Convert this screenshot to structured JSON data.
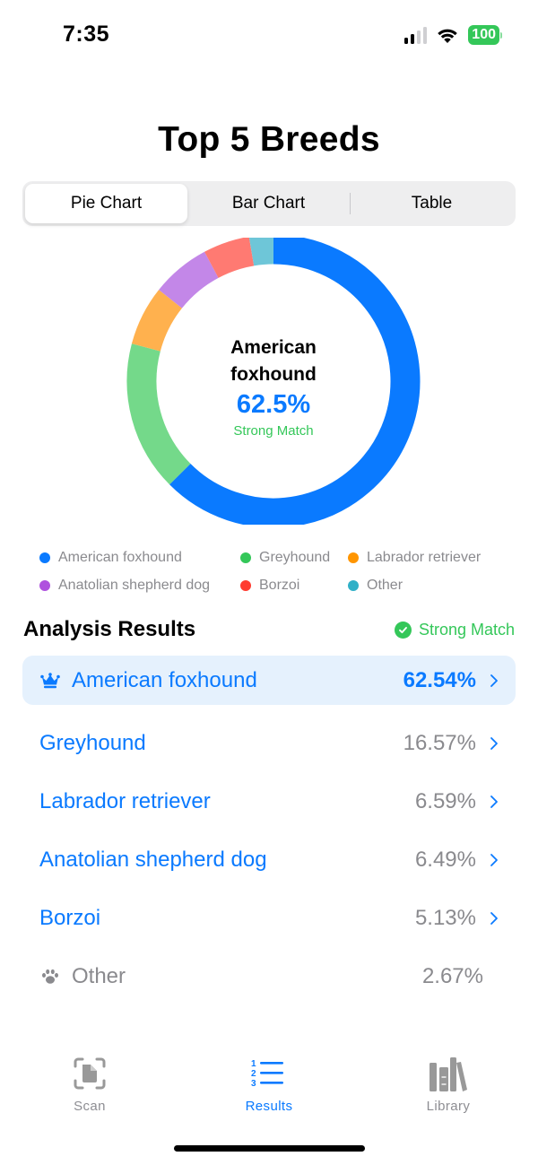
{
  "status_bar": {
    "time": "7:35",
    "battery": "100",
    "icons": [
      "cellular-signal-icon",
      "wifi-icon",
      "battery-icon"
    ]
  },
  "page": {
    "title": "Top 5 Breeds"
  },
  "segmented_control": {
    "options": [
      {
        "label": "Pie Chart",
        "selected": true
      },
      {
        "label": "Bar Chart",
        "selected": false
      },
      {
        "label": "Table",
        "selected": false
      }
    ]
  },
  "donut": {
    "center_name": "American foxhound",
    "center_percent": "62.5%",
    "center_label": "Strong Match"
  },
  "chart_data": {
    "type": "pie",
    "style": "donut",
    "title": "Top 5 Breeds",
    "categories": [
      "American foxhound",
      "Greyhound",
      "Labrador retriever",
      "Anatolian shepherd dog",
      "Borzoi",
      "Other"
    ],
    "values": [
      62.54,
      16.57,
      6.59,
      6.49,
      5.13,
      2.67
    ],
    "colors": [
      "#0a7aff",
      "#74d98a",
      "#ffb14e",
      "#c387e8",
      "#ff7a72",
      "#6ec6d8"
    ],
    "legend_colors": [
      "#0a7aff",
      "#34c759",
      "#ff9500",
      "#af52de",
      "#ff3b30",
      "#30b0c7"
    ],
    "center_text": "American foxhound 62.5% Strong Match",
    "legend_position": "bottom"
  },
  "legend": {
    "items": [
      {
        "label": "American foxhound",
        "color": "#0a7aff"
      },
      {
        "label": "Greyhound",
        "color": "#34c759"
      },
      {
        "label": "Labrador retriever",
        "color": "#ff9500"
      },
      {
        "label": "Anatolian shepherd dog",
        "color": "#af52de"
      },
      {
        "label": "Borzoi",
        "color": "#ff3b30"
      },
      {
        "label": "Other",
        "color": "#30b0c7"
      }
    ]
  },
  "results": {
    "title": "Analysis Results",
    "badge": "Strong Match",
    "rows": [
      {
        "name": "American foxhound",
        "percent": "62.54%",
        "icon": "crown-icon",
        "highlighted": true
      },
      {
        "name": "Greyhound",
        "percent": "16.57%"
      },
      {
        "name": "Labrador retriever",
        "percent": "6.59%"
      },
      {
        "name": "Anatolian shepherd dog",
        "percent": "6.49%"
      },
      {
        "name": "Borzoi",
        "percent": "5.13%"
      },
      {
        "name": "Other",
        "percent": "2.67%",
        "icon": "paw-icon"
      }
    ]
  },
  "tab_bar": {
    "tabs": [
      {
        "label": "Scan",
        "icon": "scan-document-icon",
        "active": false
      },
      {
        "label": "Results",
        "icon": "numbered-list-icon",
        "active": true
      },
      {
        "label": "Library",
        "icon": "books-icon",
        "active": false
      }
    ]
  },
  "colors": {
    "accent": "#0a7aff",
    "success": "#34c759",
    "secondary_text": "#8a8a8e",
    "highlight_row": "#e5f1fd"
  }
}
